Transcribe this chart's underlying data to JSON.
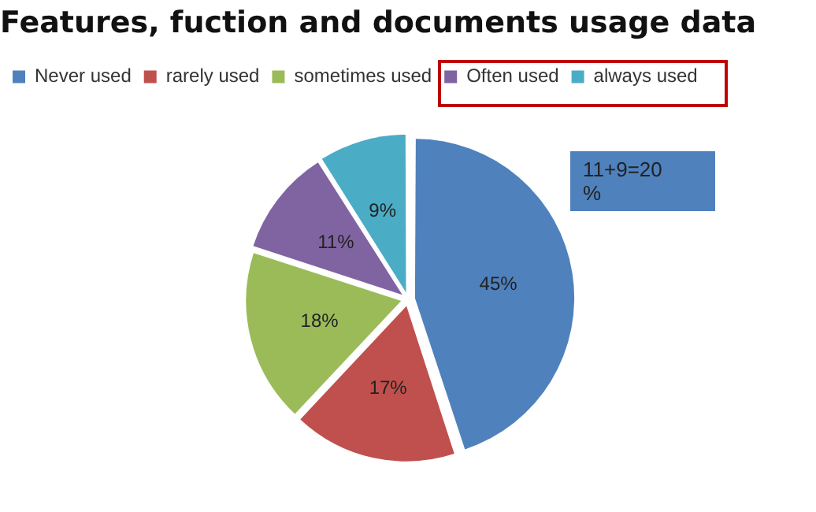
{
  "chart_data": {
    "type": "pie",
    "title": "Features, fuction and documents usage data",
    "categories": [
      "Never used",
      "rarely used",
      "sometimes used",
      "Often used",
      "always used"
    ],
    "values": [
      45,
      17,
      18,
      11,
      9
    ],
    "value_labels": [
      "45%",
      "17%",
      "18%",
      "11%",
      "9%"
    ],
    "colors": [
      "#4f81bd",
      "#c0504d",
      "#9bbb59",
      "#8064a2",
      "#4bacc6"
    ],
    "legend": "top",
    "annotations": [
      "11+9=20 %"
    ]
  }
}
